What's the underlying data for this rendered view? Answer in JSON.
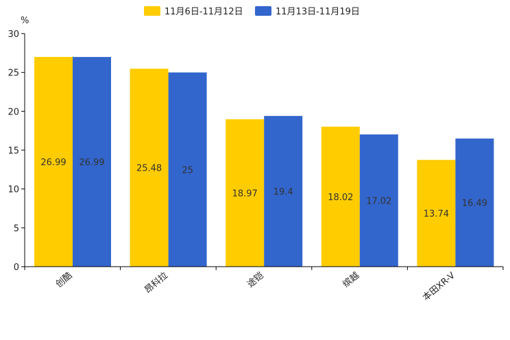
{
  "chart_data": {
    "type": "bar",
    "title": "",
    "xlabel": "",
    "ylabel": "%",
    "ylim": [
      0,
      30
    ],
    "yticks": [
      0,
      5,
      10,
      15,
      20,
      25,
      30
    ],
    "grid": false,
    "legend_position": "top-center",
    "categories": [
      "创酷",
      "昂科拉",
      "途铠",
      "缤越",
      "本田XR-V"
    ],
    "series": [
      {
        "name": "11月6日-11月12日",
        "color": "#FFCC00",
        "values": [
          26.99,
          25.48,
          18.97,
          18.02,
          13.74
        ]
      },
      {
        "name": "11月13日-11月19日",
        "color": "#3366CC",
        "values": [
          26.99,
          25,
          19.4,
          17.02,
          16.49
        ]
      }
    ]
  }
}
